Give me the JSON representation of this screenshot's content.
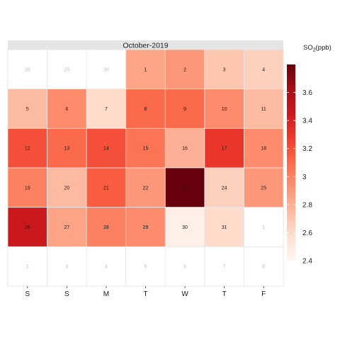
{
  "chart_data": {
    "type": "heatmap",
    "title": "October-2019",
    "legend_title": "SO₂(ppb)",
    "legend_title_base": "SO",
    "legend_title_sub": "2",
    "legend_title_unit": "(ppb)",
    "x_labels": [
      "S",
      "S",
      "M",
      "T",
      "W",
      "T",
      "F"
    ],
    "color_scale": {
      "min": 2.4,
      "max": 3.8,
      "low_color": "#fff5f0",
      "high_color": "#67000d",
      "ticks": [
        "2.4",
        "2.6",
        "2.8",
        "3",
        "3.2",
        "3.4",
        "3.6"
      ]
    },
    "weeks": [
      [
        {
          "day": "28",
          "value": null
        },
        {
          "day": "29",
          "value": null
        },
        {
          "day": "30",
          "value": null
        },
        {
          "day": "1",
          "value": 2.85
        },
        {
          "day": "2",
          "value": 2.9
        },
        {
          "day": "3",
          "value": 2.7
        },
        {
          "day": "4",
          "value": 2.65
        }
      ],
      [
        {
          "day": "5",
          "value": 2.75
        },
        {
          "day": "6",
          "value": 2.95
        },
        {
          "day": "7",
          "value": 2.6
        },
        {
          "day": "8",
          "value": 3.1
        },
        {
          "day": "9",
          "value": 3.1
        },
        {
          "day": "10",
          "value": 2.95
        },
        {
          "day": "11",
          "value": 2.75
        }
      ],
      [
        {
          "day": "12",
          "value": 3.2
        },
        {
          "day": "13",
          "value": 3.1
        },
        {
          "day": "14",
          "value": 3.2
        },
        {
          "day": "15",
          "value": 3.05
        },
        {
          "day": "16",
          "value": 2.8
        },
        {
          "day": "17",
          "value": 3.3
        },
        {
          "day": "18",
          "value": 2.95
        }
      ],
      [
        {
          "day": "19",
          "value": 3.0
        },
        {
          "day": "20",
          "value": 2.75
        },
        {
          "day": "21",
          "value": 3.15
        },
        {
          "day": "22",
          "value": 2.9
        },
        {
          "day": "23",
          "value": 3.8
        },
        {
          "day": "24",
          "value": 2.65
        },
        {
          "day": "25",
          "value": 2.9
        }
      ],
      [
        {
          "day": "26",
          "value": 3.45
        },
        {
          "day": "27",
          "value": 2.85
        },
        {
          "day": "28",
          "value": 3.0
        },
        {
          "day": "29",
          "value": 2.95
        },
        {
          "day": "30",
          "value": 2.45
        },
        {
          "day": "31",
          "value": 2.6
        },
        {
          "day": "1",
          "value": null
        }
      ],
      [
        {
          "day": "2",
          "value": null
        },
        {
          "day": "3",
          "value": null
        },
        {
          "day": "4",
          "value": null
        },
        {
          "day": "5",
          "value": null
        },
        {
          "day": "6",
          "value": null
        },
        {
          "day": "7",
          "value": null
        },
        {
          "day": "8",
          "value": null
        }
      ]
    ]
  }
}
